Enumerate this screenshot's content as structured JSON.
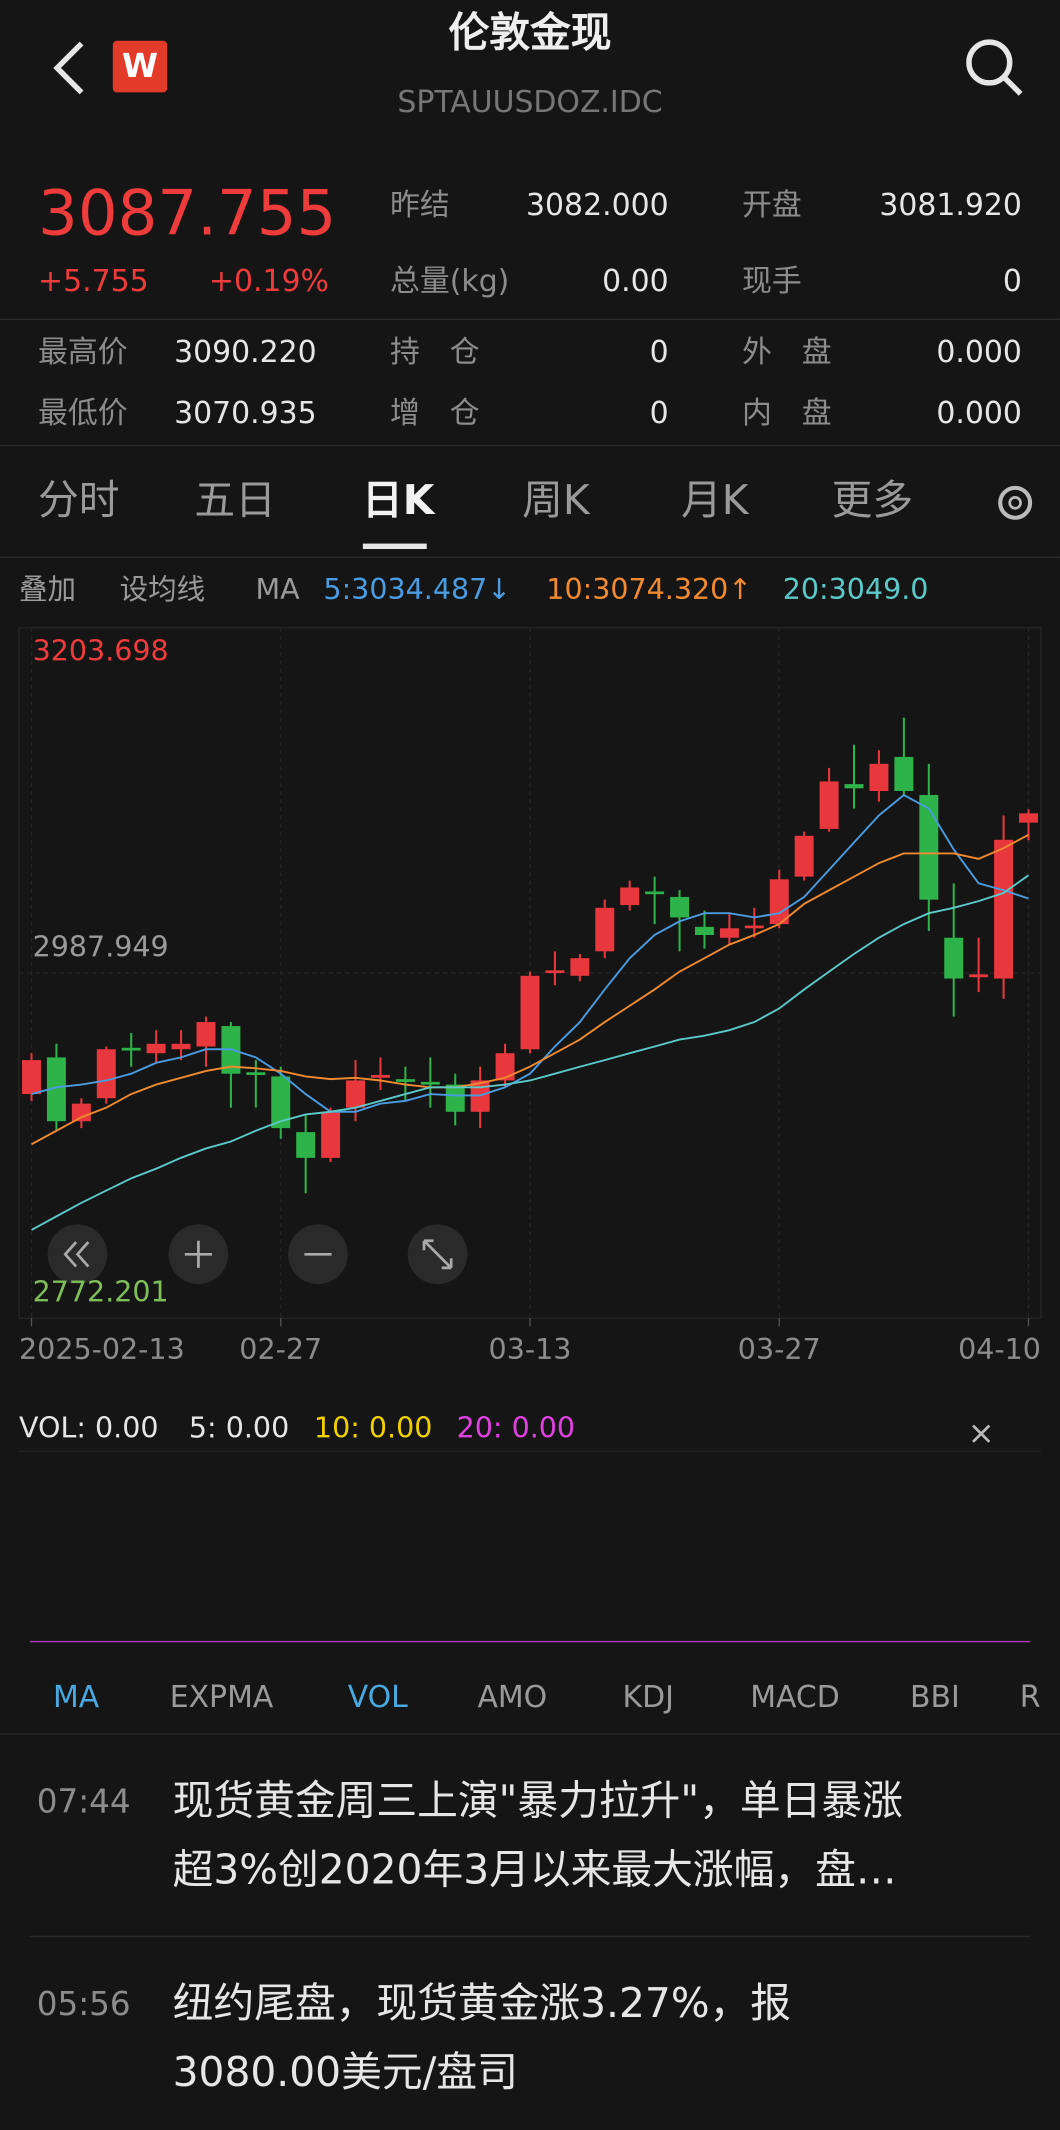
{
  "header": {
    "logo": "W",
    "title": "伦敦金现",
    "subtitle": "SPTAUUSDOZ.IDC"
  },
  "quote": {
    "price": "3087.755",
    "change": "+5.755",
    "change_pct": "+0.19%"
  },
  "stats": [
    {
      "label": "昨结",
      "value": "3082.000"
    },
    {
      "label": "开盘",
      "value": "3081.920"
    },
    {
      "label": "总量(kg)",
      "value": "0.00"
    },
    {
      "label": "现手",
      "value": "0"
    },
    {
      "label": "最高价",
      "value": "3090.220"
    },
    {
      "label": "持　仓",
      "value": "0"
    },
    {
      "label": "外　盘",
      "value": "0.000"
    },
    {
      "label": "最低价",
      "value": "3070.935"
    },
    {
      "label": "增　仓",
      "value": "0"
    },
    {
      "label": "内　盘",
      "value": "0.000"
    }
  ],
  "tabs": {
    "items": [
      "分时",
      "五日",
      "日K",
      "周K",
      "月K",
      "更多"
    ],
    "active": 2
  },
  "chart_toolbar": [
    "叠加",
    "设均线",
    "MA"
  ],
  "chart_data": {
    "type": "candlestick",
    "categories": [
      "2025-02-13",
      null,
      null,
      null,
      null,
      null,
      null,
      null,
      null,
      null,
      "02-27",
      null,
      null,
      null,
      null,
      null,
      null,
      null,
      null,
      null,
      "03-13",
      null,
      null,
      null,
      null,
      null,
      null,
      null,
      null,
      null,
      "03-27",
      null,
      null,
      null,
      null,
      null,
      null,
      null,
      null,
      null,
      "04-10"
    ],
    "open": [
      2912.3,
      2935.2,
      2895.3,
      2909.7,
      2941.2,
      2937.8,
      2940.3,
      2942.0,
      2954.8,
      2925.9,
      2923.3,
      2888.5,
      2872.4,
      2903.8,
      2922.5,
      2921.6,
      2919.9,
      2918.2,
      2901.2,
      2920.8,
      2940.3,
      2987.9,
      2986.2,
      3001.5,
      3030.4,
      3038.9,
      3035.5,
      3016.8,
      3010.0,
      3015.9,
      3018.5,
      3048.2,
      3078.0,
      3106.0,
      3101.7,
      3123.0,
      3099.2,
      3010.0,
      2985.3,
      2984.5,
      3081.92
    ],
    "high": [
      2937.8,
      2943.7,
      2909.7,
      2942.0,
      2950.5,
      2952.2,
      2952.2,
      2960.7,
      2957.3,
      2933.5,
      2929.4,
      2899.5,
      2903.8,
      2933.5,
      2935.2,
      2929.4,
      2935.2,
      2925.0,
      2929.4,
      2943.7,
      2988.8,
      3001.5,
      2999.8,
      3033.8,
      3045.7,
      3048.2,
      3039.7,
      3027.0,
      3025.3,
      3028.7,
      3052.5,
      3076.3,
      3116.2,
      3130.6,
      3127.2,
      3147.6,
      3118.7,
      3044.0,
      3010.0,
      3086.5,
      3090.22
    ],
    "low": [
      2908.0,
      2889.3,
      2891.0,
      2906.3,
      2929.4,
      2931.8,
      2933.5,
      2929.4,
      2903.8,
      2903.8,
      2884.3,
      2850.3,
      2869.8,
      2895.3,
      2914.8,
      2908.0,
      2903.8,
      2892.7,
      2891.0,
      2916.5,
      2937.8,
      2980.3,
      2982.8,
      2997.2,
      3027.0,
      3018.5,
      3001.5,
      3003.2,
      3005.7,
      3010.0,
      3015.9,
      3045.7,
      3076.3,
      3090.7,
      3095.0,
      3099.2,
      3014.2,
      2960.7,
      2976.0,
      2971.8,
      3070.935
    ],
    "close": [
      2933.5,
      2895.3,
      2906.3,
      2940.3,
      2939.5,
      2943.7,
      2943.7,
      2957.3,
      2925.0,
      2924.2,
      2891.0,
      2872.4,
      2901.2,
      2920.8,
      2924.2,
      2919.9,
      2918.2,
      2901.2,
      2920.8,
      2937.8,
      2986.2,
      2989.6,
      2997.2,
      3028.7,
      3041.4,
      3037.2,
      3022.7,
      3011.7,
      3015.9,
      3017.6,
      3046.5,
      3073.7,
      3107.7,
      3103.4,
      3118.7,
      3101.7,
      3033.8,
      2984.5,
      2987.1,
      3071.2,
      3087.755
    ],
    "up_color": "#e8383d",
    "down_color": "#2eb34a",
    "series": [
      {
        "name": "5:3034.487↓",
        "color": "#4a9be0",
        "values": [
          2912.3,
          2916.5,
          2918.2,
          2920.8,
          2925.0,
          2931.8,
          2935.2,
          2940.3,
          2940.3,
          2935.2,
          2925.0,
          2912.3,
          2901.2,
          2901.2,
          2906.3,
          2908.0,
          2912.3,
          2911.4,
          2911.4,
          2916.5,
          2925.0,
          2942.0,
          2957.3,
          2977.7,
          2997.2,
          3011.7,
          3020.2,
          3025.3,
          3025.3,
          3022.7,
          3025.3,
          3035.5,
          3052.5,
          3069.5,
          3086.5,
          3099.2,
          3090.7,
          3065.2,
          3044.0,
          3039.7,
          3034.487
        ]
      },
      {
        "name": "10:3074.320↑",
        "color": "#f08a30",
        "values": [
          2880.9,
          2889.3,
          2897.8,
          2903.8,
          2912.3,
          2918.2,
          2922.5,
          2926.7,
          2929.4,
          2928.4,
          2926.7,
          2923.3,
          2921.6,
          2922.5,
          2920.8,
          2918.2,
          2916.5,
          2916.5,
          2919.1,
          2922.5,
          2929.4,
          2937.8,
          2946.3,
          2957.3,
          2967.5,
          2977.7,
          2988.8,
          2997.2,
          3005.7,
          3011.7,
          3018.5,
          3031.2,
          3039.7,
          3048.2,
          3056.7,
          3062.7,
          3062.7,
          3062.7,
          3059.3,
          3066.0,
          3074.32
        ]
      },
      {
        "name": "20:3049.0",
        "color": "#5cc8c8",
        "values": [
          2827.3,
          2835.8,
          2844.3,
          2852.0,
          2859.6,
          2865.6,
          2872.4,
          2878.3,
          2882.6,
          2889.3,
          2895.3,
          2899.5,
          2901.2,
          2903.8,
          2908.0,
          2912.3,
          2916.5,
          2916.5,
          2916.5,
          2918.2,
          2920.8,
          2925.0,
          2929.3,
          2933.5,
          2937.8,
          2942.0,
          2946.3,
          2948.8,
          2952.2,
          2957.3,
          2965.8,
          2977.7,
          2988.8,
          2999.8,
          3010.0,
          3018.5,
          3025.3,
          3028.7,
          3032.9,
          3038.0,
          3049.0
        ]
      }
    ],
    "ylim": [
      2772.201,
      3203.698
    ],
    "yticks": [
      2772.201,
      2987.949,
      3203.698
    ],
    "grid": true
  },
  "volume": {
    "labels": [
      "VOL: 0.00",
      "5: 0.00",
      "10: 0.00",
      "20: 0.00"
    ]
  },
  "indicator_tabs": {
    "items": [
      "MA",
      "EXPMA",
      "VOL",
      "AMO",
      "KDJ",
      "MACD",
      "BBI",
      "R"
    ],
    "active": [
      0,
      2
    ]
  },
  "news": [
    {
      "time": "07:44",
      "lines": [
        "现货黄金周三上演\"暴力拉升\"，单日暴涨",
        "超3%创2020年3月以来最大涨幅，盘…"
      ]
    },
    {
      "time": "05:56",
      "lines": [
        "纽约尾盘，现货黄金涨3.27%，报",
        "3080.00美元/盘司"
      ]
    }
  ]
}
